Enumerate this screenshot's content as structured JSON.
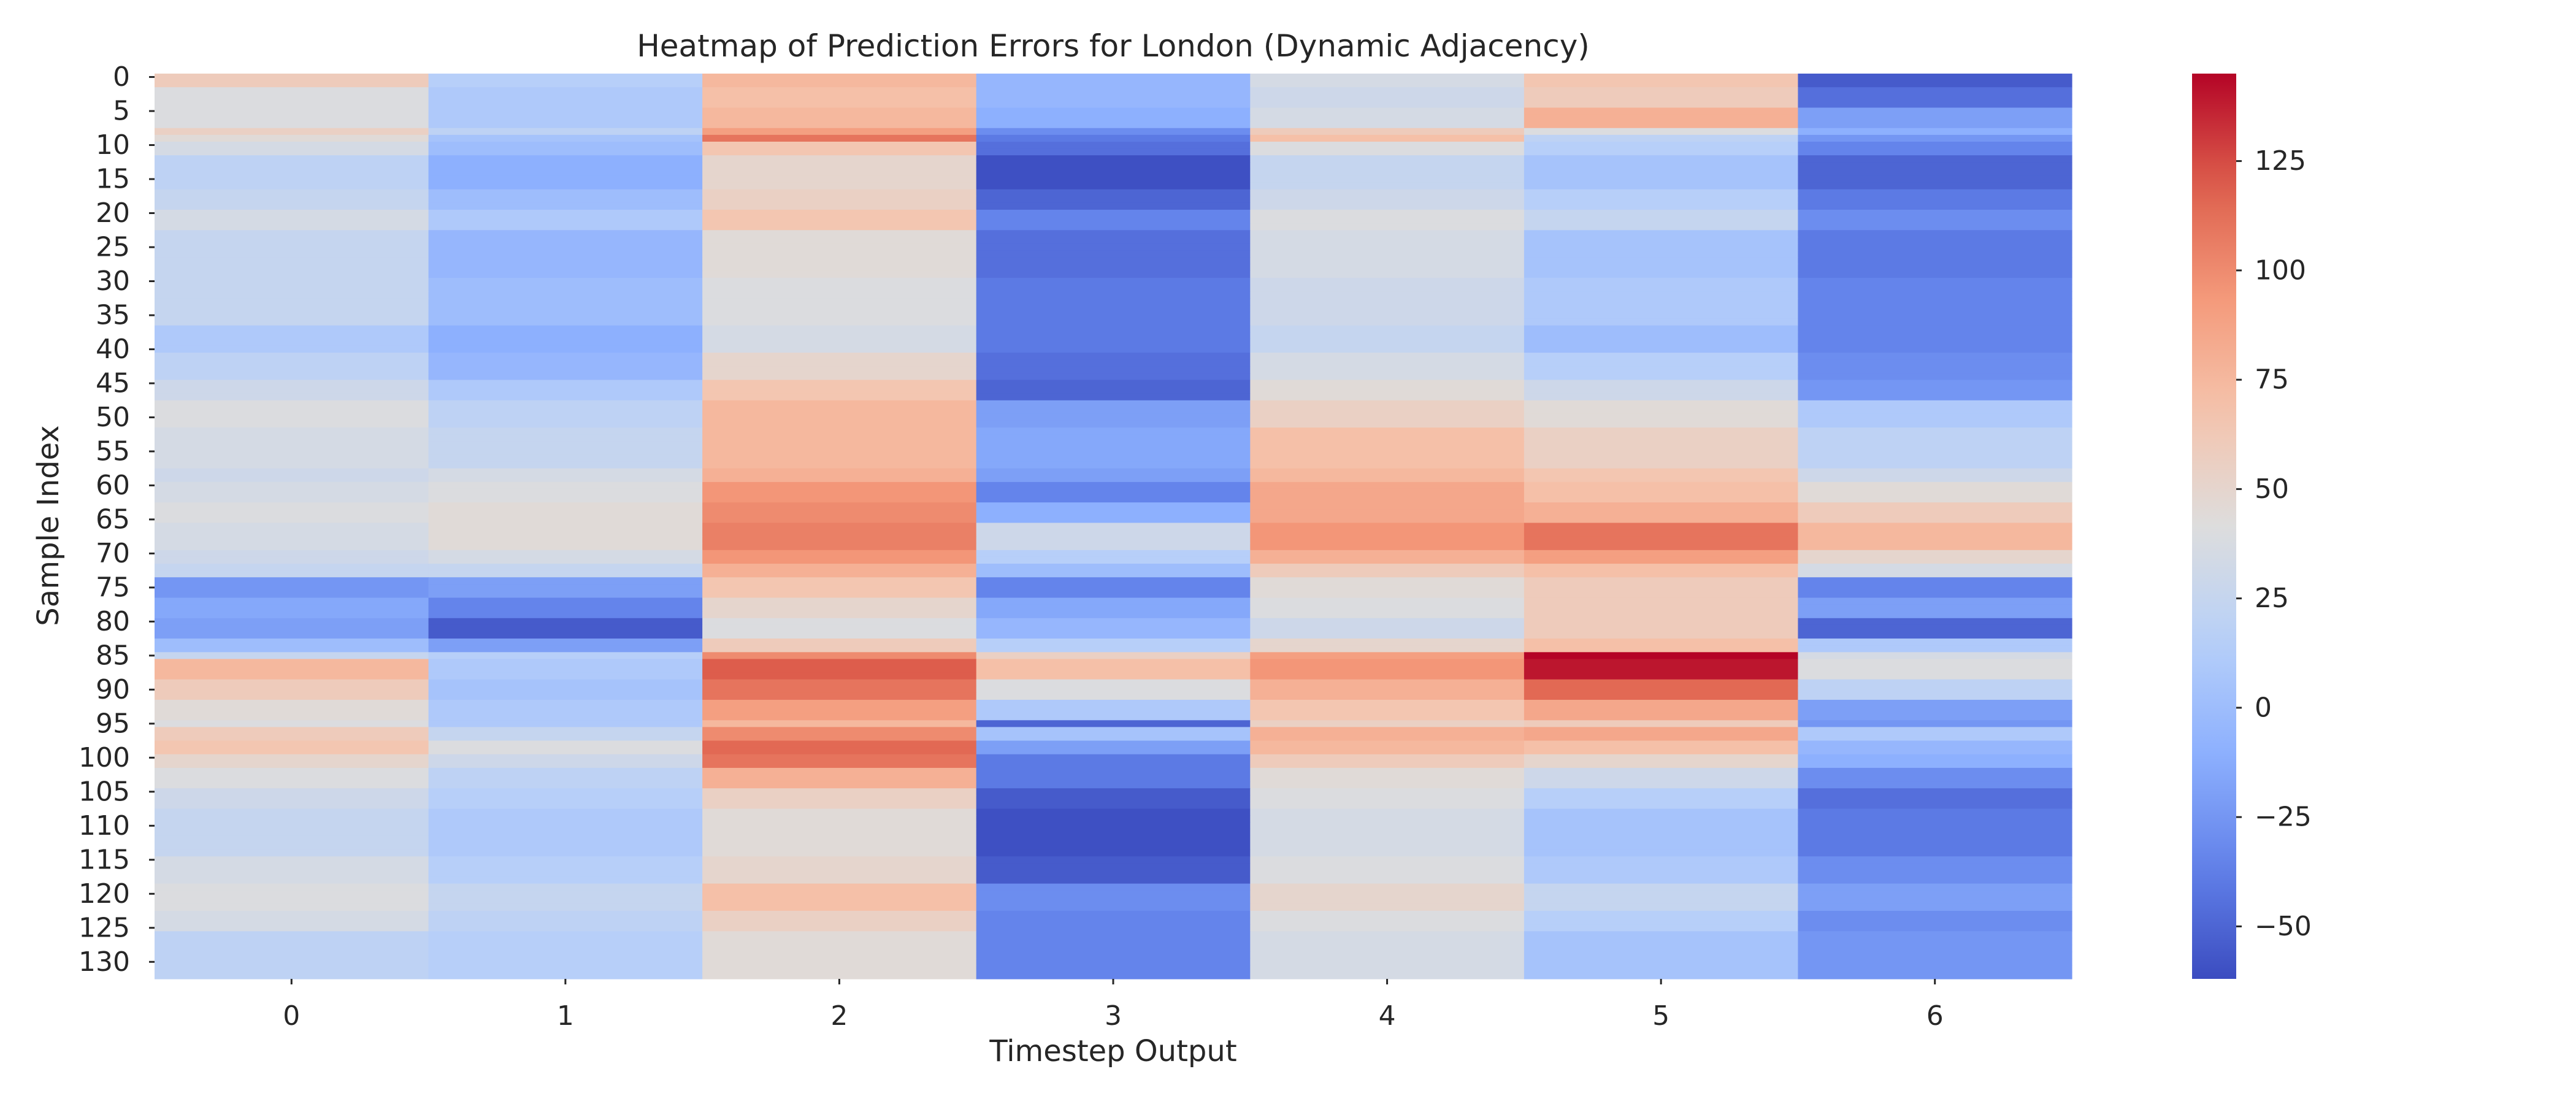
{
  "chart_data": {
    "type": "heatmap",
    "title": "Heatmap of Prediction Errors for London (Dynamic Adjacency)",
    "xlabel": "Timestep Output",
    "ylabel": "Sample Index",
    "x_categories": [
      "0",
      "1",
      "2",
      "3",
      "4",
      "5",
      "6"
    ],
    "y_range": [
      0,
      133
    ],
    "y_tick_labels": [
      "0",
      "5",
      "10",
      "15",
      "20",
      "25",
      "30",
      "35",
      "40",
      "45",
      "50",
      "55",
      "60",
      "65",
      "70",
      "75",
      "80",
      "85",
      "90",
      "95",
      "100",
      "105",
      "110",
      "115",
      "120",
      "125",
      "130"
    ],
    "colormap": "coolwarm",
    "color_range": [
      -62,
      145
    ],
    "colorbar_ticks": [
      125,
      100,
      75,
      50,
      25,
      0,
      -25,
      -50
    ],
    "colorbar_tick_labels": [
      "125",
      "100",
      "75",
      "50",
      "25",
      "0",
      "−25",
      "−50"
    ],
    "row_bands": [
      {
        "from": 0,
        "to": 2,
        "values": [
          60,
          15,
          75,
          -5,
          35,
          65,
          -55
        ]
      },
      {
        "from": 2,
        "to": 5,
        "values": [
          40,
          10,
          70,
          -5,
          30,
          60,
          -45
        ]
      },
      {
        "from": 5,
        "to": 8,
        "values": [
          40,
          10,
          75,
          -10,
          35,
          80,
          -20
        ]
      },
      {
        "from": 8,
        "to": 9,
        "values": [
          55,
          20,
          90,
          -30,
          60,
          40,
          -10
        ]
      },
      {
        "from": 9,
        "to": 10,
        "values": [
          45,
          5,
          110,
          -40,
          70,
          20,
          -25
        ]
      },
      {
        "from": 10,
        "to": 12,
        "values": [
          35,
          0,
          65,
          -45,
          40,
          15,
          -35
        ]
      },
      {
        "from": 12,
        "to": 17,
        "values": [
          20,
          -10,
          50,
          -60,
          25,
          5,
          -50
        ]
      },
      {
        "from": 17,
        "to": 20,
        "values": [
          25,
          0,
          55,
          -50,
          30,
          15,
          -40
        ]
      },
      {
        "from": 20,
        "to": 23,
        "values": [
          35,
          10,
          65,
          -35,
          40,
          25,
          -30
        ]
      },
      {
        "from": 23,
        "to": 30,
        "values": [
          25,
          -5,
          45,
          -45,
          35,
          5,
          -40
        ]
      },
      {
        "from": 30,
        "to": 37,
        "values": [
          25,
          0,
          40,
          -40,
          30,
          10,
          -35
        ]
      },
      {
        "from": 37,
        "to": 41,
        "values": [
          10,
          -10,
          35,
          -40,
          25,
          0,
          -35
        ]
      },
      {
        "from": 41,
        "to": 45,
        "values": [
          20,
          -5,
          50,
          -45,
          35,
          15,
          -30
        ]
      },
      {
        "from": 45,
        "to": 48,
        "values": [
          30,
          10,
          65,
          -50,
          45,
          30,
          -25
        ]
      },
      {
        "from": 48,
        "to": 52,
        "values": [
          40,
          20,
          75,
          -20,
          55,
          45,
          10
        ]
      },
      {
        "from": 52,
        "to": 58,
        "values": [
          35,
          25,
          75,
          -15,
          70,
          55,
          20
        ]
      },
      {
        "from": 58,
        "to": 60,
        "values": [
          30,
          35,
          80,
          -20,
          75,
          65,
          30
        ]
      },
      {
        "from": 60,
        "to": 63,
        "values": [
          35,
          40,
          95,
          -35,
          85,
          70,
          45
        ]
      },
      {
        "from": 63,
        "to": 66,
        "values": [
          40,
          45,
          100,
          -10,
          85,
          80,
          60
        ]
      },
      {
        "from": 66,
        "to": 70,
        "values": [
          35,
          45,
          105,
          30,
          95,
          110,
          75
        ]
      },
      {
        "from": 70,
        "to": 72,
        "values": [
          30,
          35,
          95,
          15,
          80,
          90,
          50
        ]
      },
      {
        "from": 72,
        "to": 74,
        "values": [
          25,
          25,
          80,
          0,
          60,
          70,
          35
        ]
      },
      {
        "from": 74,
        "to": 77,
        "values": [
          -25,
          -20,
          65,
          -35,
          45,
          60,
          -35
        ]
      },
      {
        "from": 77,
        "to": 80,
        "values": [
          -15,
          -35,
          50,
          -15,
          40,
          60,
          -20
        ]
      },
      {
        "from": 80,
        "to": 83,
        "values": [
          -20,
          -55,
          40,
          -5,
          30,
          60,
          -50
        ]
      },
      {
        "from": 83,
        "to": 85,
        "values": [
          0,
          -20,
          60,
          15,
          50,
          70,
          10
        ]
      },
      {
        "from": 85,
        "to": 86,
        "values": [
          25,
          15,
          100,
          55,
          90,
          145,
          35
        ]
      },
      {
        "from": 86,
        "to": 89,
        "values": [
          75,
          10,
          120,
          70,
          95,
          140,
          40
        ]
      },
      {
        "from": 89,
        "to": 92,
        "values": [
          60,
          5,
          110,
          40,
          80,
          115,
          20
        ]
      },
      {
        "from": 92,
        "to": 95,
        "values": [
          45,
          10,
          90,
          10,
          65,
          85,
          -20
        ]
      },
      {
        "from": 95,
        "to": 96,
        "values": [
          40,
          10,
          75,
          -50,
          55,
          60,
          -25
        ]
      },
      {
        "from": 96,
        "to": 98,
        "values": [
          60,
          25,
          100,
          5,
          80,
          85,
          10
        ]
      },
      {
        "from": 98,
        "to": 100,
        "values": [
          65,
          40,
          115,
          -20,
          75,
          70,
          -5
        ]
      },
      {
        "from": 100,
        "to": 102,
        "values": [
          50,
          30,
          110,
          -40,
          60,
          50,
          -10
        ]
      },
      {
        "from": 102,
        "to": 105,
        "values": [
          40,
          20,
          80,
          -40,
          45,
          30,
          -30
        ]
      },
      {
        "from": 105,
        "to": 108,
        "values": [
          30,
          15,
          55,
          -55,
          40,
          15,
          -45
        ]
      },
      {
        "from": 108,
        "to": 115,
        "values": [
          25,
          10,
          45,
          -60,
          35,
          5,
          -40
        ]
      },
      {
        "from": 115,
        "to": 119,
        "values": [
          35,
          15,
          50,
          -55,
          40,
          10,
          -30
        ]
      },
      {
        "from": 119,
        "to": 123,
        "values": [
          40,
          25,
          70,
          -30,
          50,
          25,
          -20
        ]
      },
      {
        "from": 123,
        "to": 126,
        "values": [
          35,
          20,
          55,
          -35,
          40,
          15,
          -30
        ]
      },
      {
        "from": 126,
        "to": 133,
        "values": [
          20,
          15,
          45,
          -35,
          35,
          5,
          -25
        ]
      }
    ]
  }
}
